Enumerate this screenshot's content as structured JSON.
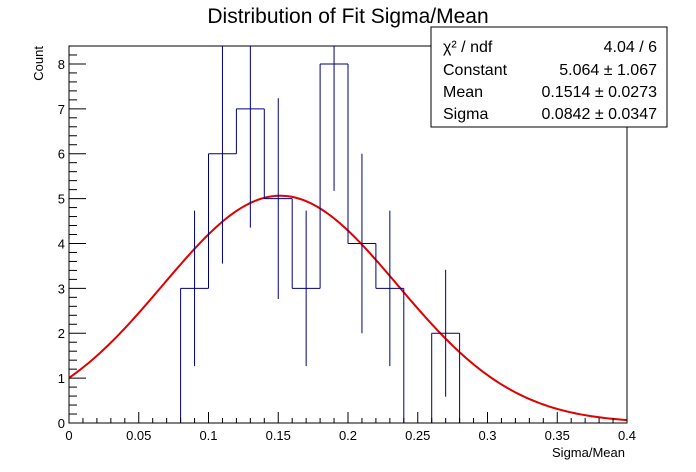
{
  "chart_data": {
    "type": "histogram",
    "title": "Distribution of Fit Sigma/Mean",
    "xlabel": "Sigma/Mean",
    "ylabel": "Count",
    "xlim": [
      0,
      0.4
    ],
    "ylim": [
      0,
      8.4
    ],
    "bin_width": 0.02,
    "bins": [
      {
        "lo": 0.08,
        "hi": 0.1,
        "count": 3
      },
      {
        "lo": 0.1,
        "hi": 0.12,
        "count": 6
      },
      {
        "lo": 0.12,
        "hi": 0.14,
        "count": 7
      },
      {
        "lo": 0.14,
        "hi": 0.16,
        "count": 5
      },
      {
        "lo": 0.16,
        "hi": 0.18,
        "count": 3
      },
      {
        "lo": 0.18,
        "hi": 0.2,
        "count": 8
      },
      {
        "lo": 0.2,
        "hi": 0.22,
        "count": 4
      },
      {
        "lo": 0.22,
        "hi": 0.24,
        "count": 3
      },
      {
        "lo": 0.26,
        "hi": 0.28,
        "count": 2
      }
    ],
    "x_ticks": [
      "0",
      "0.05",
      "0.1",
      "0.15",
      "0.2",
      "0.25",
      "0.3",
      "0.35",
      "0.4"
    ],
    "x_tick_values": [
      0,
      0.05,
      0.1,
      0.15,
      0.2,
      0.25,
      0.3,
      0.35,
      0.4
    ],
    "y_ticks": [
      "0",
      "1",
      "2",
      "3",
      "4",
      "5",
      "6",
      "7",
      "8"
    ],
    "y_tick_values": [
      0,
      1,
      2,
      3,
      4,
      5,
      6,
      7,
      8
    ],
    "fit": {
      "function": "gaus",
      "constant": 5.064,
      "mean": 0.1514,
      "sigma": 0.0842
    },
    "colors": {
      "histogram": "#00007f",
      "fit": "#e00000",
      "axes": "#000000"
    },
    "grid": false,
    "legend_position": "top-right"
  },
  "stats_box": {
    "rows": [
      {
        "label": "χ² / ndf",
        "value": "4.04 / 6"
      },
      {
        "label": "Constant",
        "value": "5.064 ± 1.067"
      },
      {
        "label": "Mean",
        "value": "0.1514 ± 0.0273"
      },
      {
        "label": "Sigma",
        "value": "0.0842 ± 0.0347"
      }
    ]
  }
}
